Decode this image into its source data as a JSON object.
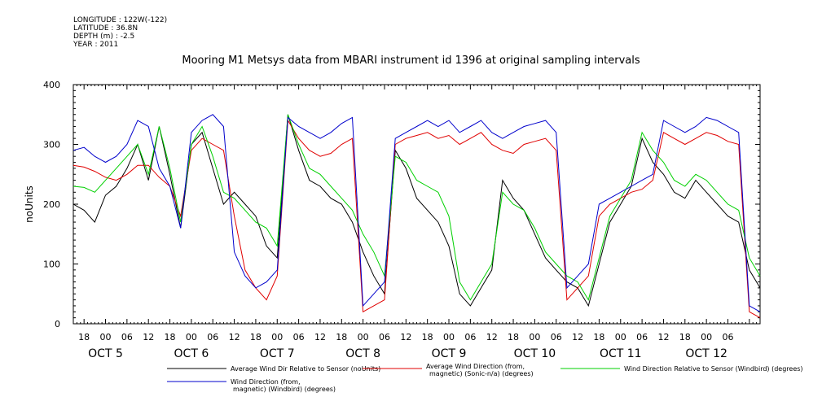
{
  "meta": {
    "longitude": "LONGITUDE : 122W(-122)",
    "latitude": "LATITUDE : 36.8N",
    "depth": "DEPTH (m) : -2.5",
    "year": "YEAR : 2011"
  },
  "chart_data": {
    "type": "line",
    "title": "Mooring M1 Metsys data from MBARI instrument id 1396 at original sampling intervals",
    "ylabel": "noUnits",
    "ylim": [
      0,
      400
    ],
    "yticks": [
      "0",
      "100",
      "200",
      "300",
      "400"
    ],
    "xlim_hours": [
      0,
      192
    ],
    "hour_ticks": [
      "18",
      "00",
      "06",
      "12",
      "18",
      "00",
      "06",
      "12",
      "18",
      "00",
      "06",
      "12",
      "18",
      "00",
      "06",
      "12",
      "18",
      "00",
      "06",
      "12",
      "18",
      "00",
      "06",
      "12",
      "18",
      "00",
      "06",
      "12",
      "18",
      "00",
      "06"
    ],
    "day_labels": [
      "OCT  5",
      "OCT  6",
      "OCT  7",
      "OCT  8",
      "OCT  9",
      "OCT 10",
      "OCT 11",
      "OCT 12"
    ],
    "series": [
      {
        "name": "Average Wind Dir Relative to Sensor (noUnits)",
        "color": "#000000",
        "points": [
          [
            0,
            200
          ],
          [
            3,
            190
          ],
          [
            6,
            170
          ],
          [
            9,
            215
          ],
          [
            12,
            230
          ],
          [
            15,
            260
          ],
          [
            18,
            300
          ],
          [
            21,
            240
          ],
          [
            24,
            330
          ],
          [
            27,
            250
          ],
          [
            30,
            160
          ],
          [
            33,
            300
          ],
          [
            36,
            320
          ],
          [
            39,
            260
          ],
          [
            42,
            200
          ],
          [
            45,
            220
          ],
          [
            48,
            200
          ],
          [
            51,
            180
          ],
          [
            54,
            130
          ],
          [
            57,
            110
          ],
          [
            60,
            350
          ],
          [
            63,
            290
          ],
          [
            66,
            240
          ],
          [
            69,
            230
          ],
          [
            72,
            210
          ],
          [
            75,
            200
          ],
          [
            78,
            170
          ],
          [
            81,
            120
          ],
          [
            84,
            80
          ],
          [
            87,
            50
          ],
          [
            90,
            290
          ],
          [
            93,
            260
          ],
          [
            96,
            210
          ],
          [
            99,
            190
          ],
          [
            102,
            170
          ],
          [
            105,
            130
          ],
          [
            108,
            50
          ],
          [
            111,
            30
          ],
          [
            114,
            60
          ],
          [
            117,
            90
          ],
          [
            120,
            240
          ],
          [
            123,
            210
          ],
          [
            126,
            190
          ],
          [
            129,
            150
          ],
          [
            132,
            110
          ],
          [
            135,
            90
          ],
          [
            138,
            70
          ],
          [
            141,
            60
          ],
          [
            144,
            30
          ],
          [
            147,
            100
          ],
          [
            150,
            170
          ],
          [
            153,
            200
          ],
          [
            156,
            230
          ],
          [
            159,
            310
          ],
          [
            162,
            270
          ],
          [
            165,
            250
          ],
          [
            168,
            220
          ],
          [
            171,
            210
          ],
          [
            174,
            240
          ],
          [
            177,
            220
          ],
          [
            180,
            200
          ],
          [
            183,
            180
          ],
          [
            186,
            170
          ],
          [
            189,
            90
          ],
          [
            192,
            60
          ]
        ]
      },
      {
        "name": "Average Wind Direction (from, magnetic) (Sonic-n/a) (degrees)",
        "color": "#e00000",
        "points": [
          [
            0,
            265
          ],
          [
            3,
            262
          ],
          [
            6,
            255
          ],
          [
            9,
            245
          ],
          [
            12,
            240
          ],
          [
            15,
            250
          ],
          [
            18,
            265
          ],
          [
            21,
            265
          ],
          [
            24,
            245
          ],
          [
            27,
            230
          ],
          [
            30,
            180
          ],
          [
            33,
            290
          ],
          [
            36,
            310
          ],
          [
            39,
            300
          ],
          [
            42,
            290
          ],
          [
            45,
            180
          ],
          [
            48,
            90
          ],
          [
            51,
            60
          ],
          [
            54,
            40
          ],
          [
            57,
            80
          ],
          [
            60,
            340
          ],
          [
            63,
            310
          ],
          [
            66,
            290
          ],
          [
            69,
            280
          ],
          [
            72,
            285
          ],
          [
            75,
            300
          ],
          [
            78,
            310
          ],
          [
            81,
            20
          ],
          [
            84,
            30
          ],
          [
            87,
            40
          ],
          [
            90,
            300
          ],
          [
            93,
            310
          ],
          [
            96,
            315
          ],
          [
            99,
            320
          ],
          [
            102,
            310
          ],
          [
            105,
            315
          ],
          [
            108,
            300
          ],
          [
            111,
            310
          ],
          [
            114,
            320
          ],
          [
            117,
            300
          ],
          [
            120,
            290
          ],
          [
            123,
            285
          ],
          [
            126,
            300
          ],
          [
            129,
            305
          ],
          [
            132,
            310
          ],
          [
            135,
            290
          ],
          [
            138,
            40
          ],
          [
            141,
            60
          ],
          [
            144,
            80
          ],
          [
            147,
            180
          ],
          [
            150,
            200
          ],
          [
            153,
            210
          ],
          [
            156,
            220
          ],
          [
            159,
            225
          ],
          [
            162,
            240
          ],
          [
            165,
            320
          ],
          [
            168,
            310
          ],
          [
            171,
            300
          ],
          [
            174,
            310
          ],
          [
            177,
            320
          ],
          [
            180,
            315
          ],
          [
            183,
            305
          ],
          [
            186,
            300
          ],
          [
            189,
            20
          ],
          [
            192,
            10
          ]
        ]
      },
      {
        "name": "Wind Direction Relative to Sensor (Windbird) (degrees)",
        "color": "#00d000",
        "points": [
          [
            0,
            230
          ],
          [
            3,
            228
          ],
          [
            6,
            220
          ],
          [
            9,
            240
          ],
          [
            12,
            260
          ],
          [
            15,
            280
          ],
          [
            18,
            300
          ],
          [
            21,
            250
          ],
          [
            24,
            330
          ],
          [
            27,
            260
          ],
          [
            30,
            170
          ],
          [
            33,
            300
          ],
          [
            36,
            330
          ],
          [
            39,
            280
          ],
          [
            42,
            220
          ],
          [
            45,
            210
          ],
          [
            48,
            190
          ],
          [
            51,
            170
          ],
          [
            54,
            160
          ],
          [
            57,
            130
          ],
          [
            60,
            350
          ],
          [
            63,
            300
          ],
          [
            66,
            260
          ],
          [
            69,
            250
          ],
          [
            72,
            230
          ],
          [
            75,
            210
          ],
          [
            78,
            190
          ],
          [
            81,
            150
          ],
          [
            84,
            120
          ],
          [
            87,
            80
          ],
          [
            90,
            280
          ],
          [
            93,
            270
          ],
          [
            96,
            240
          ],
          [
            99,
            230
          ],
          [
            102,
            220
          ],
          [
            105,
            180
          ],
          [
            108,
            70
          ],
          [
            111,
            40
          ],
          [
            114,
            70
          ],
          [
            117,
            100
          ],
          [
            120,
            220
          ],
          [
            123,
            200
          ],
          [
            126,
            190
          ],
          [
            129,
            160
          ],
          [
            132,
            120
          ],
          [
            135,
            100
          ],
          [
            138,
            80
          ],
          [
            141,
            70
          ],
          [
            144,
            40
          ],
          [
            147,
            110
          ],
          [
            150,
            180
          ],
          [
            153,
            210
          ],
          [
            156,
            240
          ],
          [
            159,
            320
          ],
          [
            162,
            290
          ],
          [
            165,
            270
          ],
          [
            168,
            240
          ],
          [
            171,
            230
          ],
          [
            174,
            250
          ],
          [
            177,
            240
          ],
          [
            180,
            220
          ],
          [
            183,
            200
          ],
          [
            186,
            190
          ],
          [
            189,
            110
          ],
          [
            192,
            80
          ]
        ]
      },
      {
        "name": "Wind Direction (from, magnetic) (Windbird) (degrees)",
        "color": "#0000cc",
        "points": [
          [
            0,
            290
          ],
          [
            3,
            295
          ],
          [
            6,
            280
          ],
          [
            9,
            270
          ],
          [
            12,
            280
          ],
          [
            15,
            300
          ],
          [
            18,
            340
          ],
          [
            21,
            330
          ],
          [
            24,
            260
          ],
          [
            27,
            230
          ],
          [
            30,
            160
          ],
          [
            33,
            320
          ],
          [
            36,
            340
          ],
          [
            39,
            350
          ],
          [
            42,
            330
          ],
          [
            45,
            120
          ],
          [
            48,
            80
          ],
          [
            51,
            60
          ],
          [
            54,
            70
          ],
          [
            57,
            90
          ],
          [
            60,
            345
          ],
          [
            63,
            330
          ],
          [
            66,
            320
          ],
          [
            69,
            310
          ],
          [
            72,
            320
          ],
          [
            75,
            335
          ],
          [
            78,
            345
          ],
          [
            81,
            30
          ],
          [
            84,
            50
          ],
          [
            87,
            70
          ],
          [
            90,
            310
          ],
          [
            93,
            320
          ],
          [
            96,
            330
          ],
          [
            99,
            340
          ],
          [
            102,
            330
          ],
          [
            105,
            340
          ],
          [
            108,
            320
          ],
          [
            111,
            330
          ],
          [
            114,
            340
          ],
          [
            117,
            320
          ],
          [
            120,
            310
          ],
          [
            123,
            320
          ],
          [
            126,
            330
          ],
          [
            129,
            335
          ],
          [
            132,
            340
          ],
          [
            135,
            320
          ],
          [
            138,
            60
          ],
          [
            141,
            80
          ],
          [
            144,
            100
          ],
          [
            147,
            200
          ],
          [
            150,
            210
          ],
          [
            153,
            220
          ],
          [
            156,
            230
          ],
          [
            159,
            240
          ],
          [
            162,
            250
          ],
          [
            165,
            340
          ],
          [
            168,
            330
          ],
          [
            171,
            320
          ],
          [
            174,
            330
          ],
          [
            177,
            345
          ],
          [
            180,
            340
          ],
          [
            183,
            330
          ],
          [
            186,
            320
          ],
          [
            189,
            30
          ],
          [
            192,
            20
          ]
        ]
      }
    ],
    "legend_placement": "bottom"
  },
  "legend": {
    "black_label": "Average Wind Dir Relative to Sensor (noUnits)",
    "red_label_1": "Average Wind Direction (from,",
    "red_label_2": "magnetic) (Sonic-n/a) (degrees)",
    "green_label": "Wind Direction Relative to Sensor (Windbird) (degrees)",
    "blue_label_1": "Wind Direction (from,",
    "blue_label_2": "magnetic) (Windbird) (degrees)"
  }
}
